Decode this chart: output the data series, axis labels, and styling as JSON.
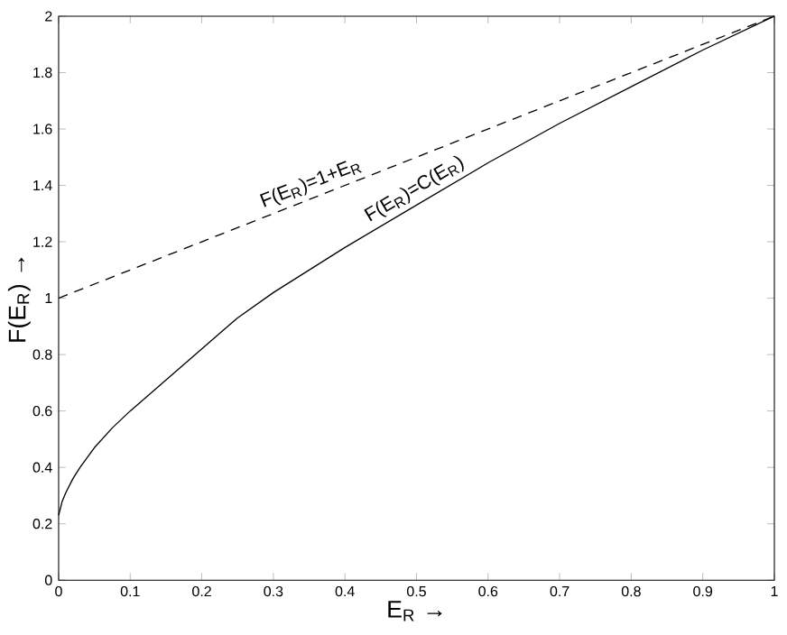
{
  "chart_data": {
    "type": "line",
    "xlabel": "E$_{R}$ →",
    "ylabel": "F(E$_{R}$) →",
    "xlim": [
      0,
      1
    ],
    "ylim": [
      0,
      2
    ],
    "xticks": [
      0,
      0.1,
      0.2,
      0.3,
      0.4,
      0.5,
      0.6,
      0.7,
      0.8,
      0.9,
      1
    ],
    "yticks": [
      0,
      0.2,
      0.4,
      0.6,
      0.8,
      1,
      1.2,
      1.4,
      1.6,
      1.8,
      2
    ],
    "series": [
      {
        "name": "F(E$_{R}$)=1+E$_{R}$",
        "color": "#000000",
        "line_style": "dashed",
        "x": [
          0,
          1
        ],
        "values": [
          1,
          2
        ]
      },
      {
        "name": "F(E$_{R}$)=C(E$_{R}$)",
        "color": "#000000",
        "line_style": "solid",
        "x": [
          0,
          0.005,
          0.01,
          0.02,
          0.03,
          0.05,
          0.075,
          0.1,
          0.15,
          0.2,
          0.25,
          0.3,
          0.35,
          0.4,
          0.5,
          0.6,
          0.7,
          0.8,
          0.9,
          1
        ],
        "values": [
          0.23,
          0.28,
          0.31,
          0.36,
          0.4,
          0.47,
          0.54,
          0.6,
          0.71,
          0.82,
          0.93,
          1.02,
          1.1,
          1.18,
          1.33,
          1.48,
          1.62,
          1.75,
          1.88,
          2
        ]
      }
    ],
    "grid": false
  }
}
